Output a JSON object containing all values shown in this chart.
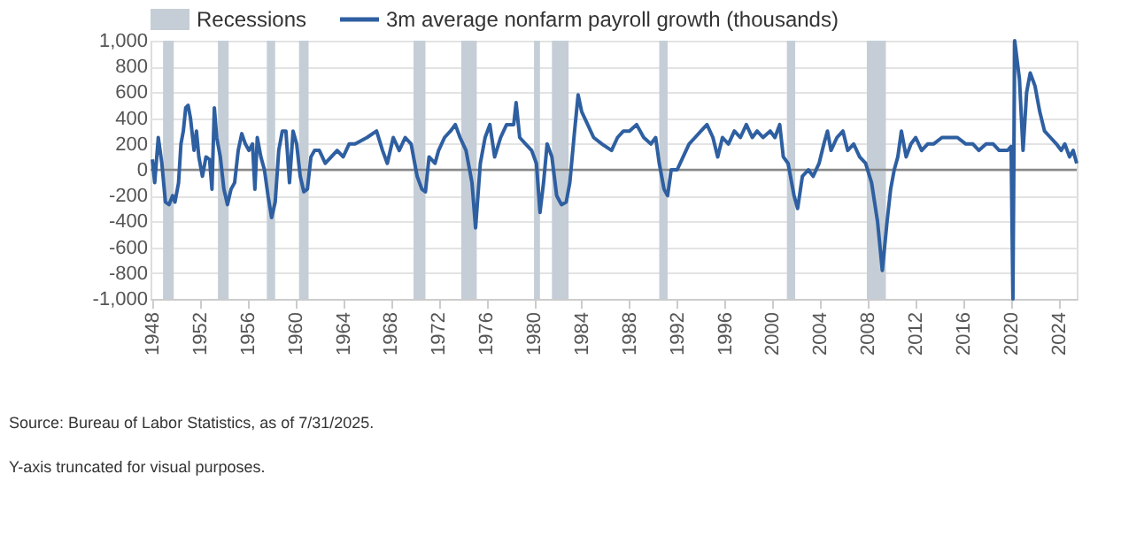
{
  "chart_data": {
    "type": "line",
    "xlim": [
      1947.85,
      2025.5
    ],
    "xticks": [
      1948,
      1952,
      1956,
      1960,
      1964,
      1968,
      1972,
      1976,
      1980,
      1984,
      1988,
      1992,
      1996,
      2000,
      2004,
      2008,
      2012,
      2016,
      2020,
      2024
    ],
    "ylim": [
      -1000,
      1000
    ],
    "yticks": [
      {
        "value": -1000,
        "label": "-1,000"
      },
      -800,
      -600,
      -400,
      -200,
      0,
      200,
      400,
      600,
      800,
      {
        "value": 1000,
        "label": "1,000"
      }
    ],
    "grid": "y",
    "legend": "top left",
    "line_style": "solid",
    "marker": "none",
    "legend_title": null,
    "series": [
      {
        "name": "3m average nonfarm payroll growth (thousands)",
        "color": "#2e5fa1",
        "x": [
          1948.0,
          1948.2,
          1948.5,
          1948.8,
          1949.1,
          1949.4,
          1949.7,
          1949.9,
          1950.2,
          1950.4,
          1950.6,
          1950.8,
          1951.0,
          1951.2,
          1951.5,
          1951.7,
          1951.9,
          1952.2,
          1952.5,
          1952.8,
          1953.0,
          1953.2,
          1953.4,
          1953.7,
          1954.0,
          1954.3,
          1954.6,
          1954.9,
          1955.2,
          1955.5,
          1955.8,
          1956.1,
          1956.4,
          1956.6,
          1956.8,
          1957.1,
          1957.4,
          1957.7,
          1958.0,
          1958.3,
          1958.6,
          1958.9,
          1959.2,
          1959.5,
          1959.8,
          1960.1,
          1960.4,
          1960.7,
          1961.0,
          1961.3,
          1961.6,
          1962.0,
          1962.5,
          1963.0,
          1963.5,
          1964.0,
          1964.5,
          1965.0,
          1966.0,
          1966.8,
          1967.3,
          1967.7,
          1968.2,
          1968.7,
          1969.2,
          1969.7,
          1970.2,
          1970.6,
          1970.9,
          1971.2,
          1971.7,
          1972.0,
          1972.5,
          1973.0,
          1973.4,
          1973.8,
          1974.3,
          1974.8,
          1975.1,
          1975.5,
          1975.9,
          1976.3,
          1976.7,
          1977.2,
          1977.7,
          1978.3,
          1978.5,
          1978.8,
          1979.3,
          1979.8,
          1980.2,
          1980.5,
          1980.8,
          1981.1,
          1981.5,
          1981.9,
          1982.3,
          1982.7,
          1983.0,
          1983.4,
          1983.7,
          1984.0,
          1984.5,
          1985.0,
          1985.7,
          1986.5,
          1987.0,
          1987.5,
          1988.0,
          1988.6,
          1989.2,
          1989.8,
          1990.2,
          1990.5,
          1990.9,
          1991.2,
          1991.5,
          1992.0,
          1992.5,
          1993.0,
          1993.5,
          1994.0,
          1994.5,
          1995.0,
          1995.4,
          1995.8,
          1996.3,
          1996.8,
          1997.3,
          1997.8,
          1998.3,
          1998.7,
          1999.2,
          1999.8,
          2000.2,
          2000.6,
          2000.9,
          2001.3,
          2001.8,
          2002.1,
          2002.5,
          2003.0,
          2003.4,
          2003.9,
          2004.3,
          2004.6,
          2004.9,
          2005.4,
          2005.9,
          2006.3,
          2006.8,
          2007.3,
          2007.8,
          2008.3,
          2008.8,
          2009.2,
          2009.6,
          2009.9,
          2010.2,
          2010.5,
          2010.8,
          2011.2,
          2011.6,
          2012.0,
          2012.5,
          2013.0,
          2013.5,
          2014.2,
          2014.8,
          2015.5,
          2016.2,
          2016.8,
          2017.3,
          2017.9,
          2018.5,
          2019.0,
          2019.7,
          2020.0,
          2020.15,
          2020.3,
          2020.7,
          2021.0,
          2021.3,
          2021.6,
          2022.0,
          2022.4,
          2022.8,
          2023.3,
          2023.8,
          2024.2,
          2024.5,
          2024.9,
          2025.2,
          2025.5
        ],
        "values": [
          80,
          -100,
          250,
          50,
          -250,
          -270,
          -200,
          -250,
          -100,
          200,
          300,
          480,
          500,
          400,
          150,
          300,
          100,
          -50,
          100,
          80,
          -150,
          480,
          250,
          100,
          -150,
          -270,
          -150,
          -100,
          150,
          280,
          200,
          150,
          200,
          -150,
          250,
          100,
          0,
          -200,
          -370,
          -250,
          150,
          300,
          300,
          -100,
          300,
          200,
          -50,
          -170,
          -150,
          100,
          150,
          150,
          50,
          100,
          150,
          100,
          200,
          200,
          250,
          300,
          150,
          50,
          250,
          150,
          250,
          200,
          -50,
          -150,
          -170,
          100,
          50,
          150,
          250,
          300,
          350,
          250,
          150,
          -100,
          -450,
          50,
          250,
          350,
          100,
          250,
          350,
          350,
          520,
          250,
          200,
          150,
          50,
          -330,
          -100,
          200,
          100,
          -200,
          -270,
          -250,
          -100,
          300,
          580,
          450,
          350,
          250,
          200,
          150,
          250,
          300,
          300,
          350,
          250,
          200,
          250,
          50,
          -150,
          -200,
          0,
          0,
          100,
          200,
          250,
          300,
          350,
          250,
          100,
          250,
          200,
          300,
          250,
          350,
          250,
          300,
          250,
          300,
          250,
          350,
          100,
          50,
          -200,
          -300,
          -50,
          0,
          -50,
          50,
          200,
          300,
          150,
          250,
          300,
          150,
          200,
          100,
          50,
          -100,
          -400,
          -780,
          -400,
          -150,
          0,
          100,
          300,
          100,
          200,
          250,
          150,
          200,
          200,
          250,
          250,
          250,
          200,
          200,
          150,
          200,
          200,
          150,
          150,
          180,
          -1000,
          1000,
          700,
          150,
          600,
          750,
          650,
          450,
          300,
          250,
          200,
          150,
          200,
          100,
          150,
          50
        ]
      }
    ],
    "bands": [
      {
        "axis": "x",
        "from": 1948.9,
        "to": 1949.8,
        "label": "Recessions",
        "color": "#c5ced6"
      },
      {
        "axis": "x",
        "from": 1953.5,
        "to": 1954.4,
        "color": "#c5ced6"
      },
      {
        "axis": "x",
        "from": 1957.6,
        "to": 1958.3,
        "color": "#c5ced6"
      },
      {
        "axis": "x",
        "from": 1960.3,
        "to": 1961.1,
        "color": "#c5ced6"
      },
      {
        "axis": "x",
        "from": 1969.9,
        "to": 1970.9,
        "color": "#c5ced6"
      },
      {
        "axis": "x",
        "from": 1973.9,
        "to": 1975.2,
        "color": "#c5ced6"
      },
      {
        "axis": "x",
        "from": 1980.0,
        "to": 1980.5,
        "color": "#c5ced6"
      },
      {
        "axis": "x",
        "from": 1981.5,
        "to": 1982.9,
        "color": "#c5ced6"
      },
      {
        "axis": "x",
        "from": 1990.5,
        "to": 1991.2,
        "color": "#c5ced6"
      },
      {
        "axis": "x",
        "from": 2001.2,
        "to": 2001.9,
        "color": "#c5ced6"
      },
      {
        "axis": "x",
        "from": 2007.9,
        "to": 2009.5,
        "color": "#c5ced6"
      },
      {
        "axis": "x",
        "from": 2020.1,
        "to": 2020.3,
        "color": "#c5ced6"
      }
    ],
    "ref_lines": [
      {
        "axis": "y",
        "value": 0,
        "color": "#888888"
      }
    ],
    "annotations": [
      "Source: Bureau of Labor Statistics, as of 7/31/2025.",
      "Y-axis truncated for visual purposes."
    ]
  }
}
